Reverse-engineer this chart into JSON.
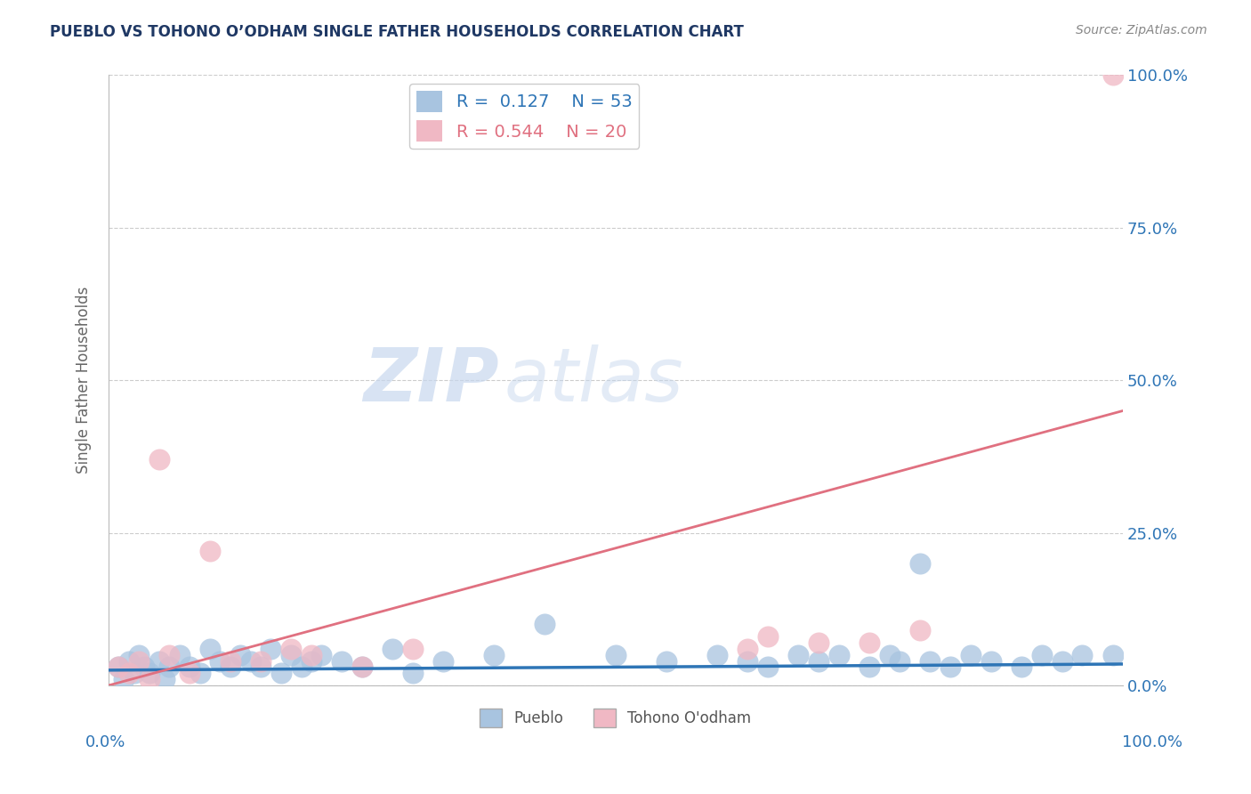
{
  "title": "PUEBLO VS TOHONO O’ODHAM SINGLE FATHER HOUSEHOLDS CORRELATION CHART",
  "source": "Source: ZipAtlas.com",
  "ylabel": "Single Father Households",
  "pueblo_R": 0.127,
  "pueblo_N": 53,
  "tohono_R": 0.544,
  "tohono_N": 20,
  "pueblo_color": "#a8c4e0",
  "tohono_color": "#f0b8c4",
  "pueblo_line_color": "#2e75b6",
  "tohono_line_color": "#e07080",
  "watermark_zip": "ZIP",
  "watermark_atlas": "atlas",
  "pueblo_x": [
    1,
    1.5,
    2,
    2.5,
    3,
    3.5,
    4,
    5,
    5.5,
    6,
    7,
    8,
    9,
    10,
    11,
    12,
    13,
    14,
    15,
    16,
    17,
    18,
    19,
    20,
    21,
    23,
    25,
    28,
    30,
    33,
    38,
    43,
    50,
    55,
    60,
    63,
    65,
    68,
    70,
    72,
    75,
    77,
    78,
    80,
    81,
    83,
    85,
    87,
    90,
    92,
    94,
    96,
    99
  ],
  "pueblo_y": [
    3,
    1,
    4,
    2,
    5,
    3,
    2,
    4,
    1,
    3,
    5,
    3,
    2,
    6,
    4,
    3,
    5,
    4,
    3,
    6,
    2,
    5,
    3,
    4,
    5,
    4,
    3,
    6,
    2,
    4,
    5,
    10,
    5,
    4,
    5,
    4,
    3,
    5,
    4,
    5,
    3,
    5,
    4,
    20,
    4,
    3,
    5,
    4,
    3,
    5,
    4,
    5,
    5
  ],
  "tohono_x": [
    1,
    2,
    3,
    4,
    5,
    6,
    8,
    10,
    12,
    15,
    18,
    20,
    25,
    30,
    63,
    65,
    70,
    75,
    80,
    99
  ],
  "tohono_y": [
    3,
    2,
    4,
    1,
    37,
    5,
    2,
    22,
    4,
    4,
    6,
    5,
    3,
    6,
    6,
    8,
    7,
    7,
    9,
    100
  ],
  "pueblo_line_x0": 0,
  "pueblo_line_x1": 100,
  "pueblo_line_y0": 2.5,
  "pueblo_line_y1": 3.5,
  "tohono_line_x0": 0,
  "tohono_line_x1": 100,
  "tohono_line_y0": 0,
  "tohono_line_y1": 45,
  "xlim": [
    0,
    100
  ],
  "ylim": [
    0,
    100
  ],
  "yticks": [
    0,
    25,
    50,
    75,
    100
  ],
  "ytick_labels": [
    "0.0%",
    "25.0%",
    "50.0%",
    "75.0%",
    "100.0%"
  ]
}
